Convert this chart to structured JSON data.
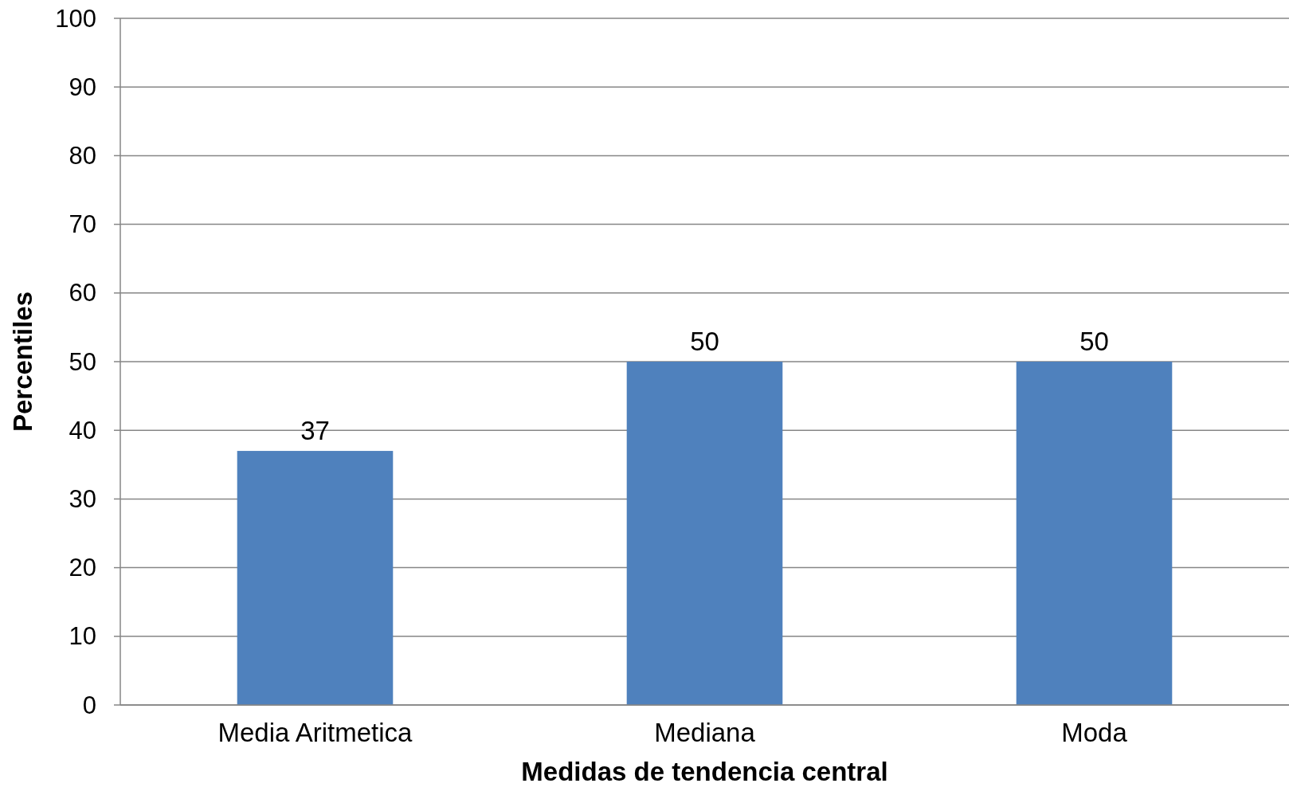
{
  "chart_data": {
    "type": "bar",
    "xlabel": "Medidas de tendencia central",
    "ylabel": "Percentiles",
    "categories": [
      "Media Aritmetica",
      "Mediana",
      "Moda"
    ],
    "values": [
      37,
      50,
      50
    ],
    "color": "#4f81bd",
    "ylim": [
      0,
      100
    ],
    "yticks": [
      0,
      10,
      20,
      30,
      40,
      50,
      60,
      70,
      80,
      90,
      100
    ],
    "grid": "y",
    "data_labels": true
  }
}
